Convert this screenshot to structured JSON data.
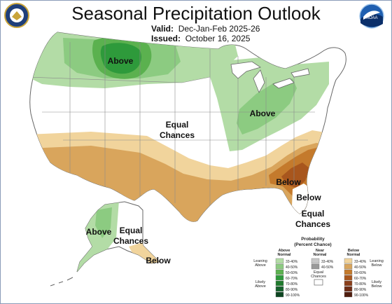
{
  "title": "Seasonal Precipitation Outlook",
  "valid": {
    "label": "Valid:",
    "value": "Dec-Jan-Feb 2025-26"
  },
  "issued": {
    "label": "Issued:",
    "value": "October 16, 2025"
  },
  "logos": {
    "left": "department-of-commerce-seal",
    "right": "noaa",
    "right_text": "NOAA"
  },
  "map_labels": {
    "above_north": "Above",
    "above_ohio": "Above",
    "equal_chances_conus_1": "Equal",
    "equal_chances_conus_2": "Chances",
    "below_southeast": "Below",
    "below_florida": "Below",
    "equal_chances_fl_1": "Equal",
    "equal_chances_fl_2": "Chances",
    "above_alaska": "Above",
    "equal_chances_ak_1": "Equal",
    "equal_chances_ak_2": "Chances",
    "below_alaska": "Below"
  },
  "legend": {
    "title_1": "Probability",
    "title_2": "(Percent Chance)",
    "above_header_1": "Above",
    "above_header_2": "Normal",
    "near_header_1": "Near",
    "near_header_2": "Normal",
    "below_header_1": "Below",
    "below_header_2": "Normal",
    "leaning_above_1": "Leaning",
    "leaning_above_2": "Above",
    "likely_above_1": "Likely",
    "likely_above_2": "Above",
    "leaning_below_1": "Leaning",
    "leaning_below_2": "Below",
    "likely_below_1": "Likely",
    "likely_below_2": "Below",
    "equal_chances_1": "Equal",
    "equal_chances_2": "Chances",
    "above_bins": [
      "33-40%",
      "40-50%",
      "50-60%",
      "60-70%",
      "70-80%",
      "80-90%",
      "90-100%"
    ],
    "near_bins": [
      "33-40%",
      "40-50%"
    ],
    "below_bins": [
      "33-40%",
      "40-50%",
      "50-60%",
      "60-70%",
      "70-80%",
      "80-90%",
      "90-100%"
    ]
  },
  "colors": {
    "above": [
      "#b3dca6",
      "#8ccb81",
      "#5bb14f",
      "#2e9a3b",
      "#1e7a2c",
      "#14602a",
      "#0c4420"
    ],
    "near": [
      "#c8c8c8",
      "#9a9a9a"
    ],
    "below": [
      "#f1d49c",
      "#d9a55c",
      "#c47a2c",
      "#a8561d",
      "#8a3f1a",
      "#6d2c14",
      "#4f1d0d"
    ],
    "boundary": "#666666"
  }
}
